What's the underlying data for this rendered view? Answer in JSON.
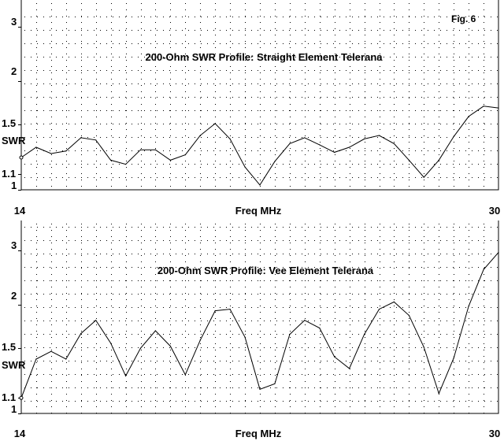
{
  "figure_label": "Fig. 6",
  "chart_data": [
    {
      "type": "line",
      "title": "200-Ohm SWR Profile:  Straight Element Telerana",
      "xlabel": "Freq MHz",
      "ylabel": "SWR",
      "x_tick_labels": [
        "14",
        "30"
      ],
      "y_tick_labels": [
        "1",
        "1.1",
        "1.5",
        "2",
        "3"
      ],
      "xlim": [
        14,
        30
      ],
      "ylim": [
        1,
        3.5
      ],
      "yscale": "vswr",
      "grid": true,
      "x": [
        14.0,
        14.5,
        15.0,
        15.5,
        16.0,
        16.5,
        17.0,
        17.5,
        18.0,
        18.5,
        19.0,
        19.5,
        20.0,
        20.5,
        21.0,
        21.5,
        22.0,
        22.5,
        23.0,
        23.5,
        24.0,
        24.5,
        25.0,
        25.5,
        26.0,
        26.5,
        27.0,
        27.5,
        28.0,
        28.5,
        29.0,
        29.5,
        30.0
      ],
      "values": [
        1.22,
        1.3,
        1.25,
        1.27,
        1.38,
        1.36,
        1.2,
        1.17,
        1.28,
        1.28,
        1.2,
        1.24,
        1.4,
        1.51,
        1.37,
        1.15,
        1.03,
        1.19,
        1.33,
        1.38,
        1.32,
        1.26,
        1.3,
        1.37,
        1.4,
        1.33,
        1.2,
        1.08,
        1.2,
        1.39,
        1.58,
        1.69,
        1.67
      ]
    },
    {
      "type": "line",
      "title": "200-Ohm SWR Profile:  Vee Element Telerana",
      "xlabel": "Freq MHz",
      "ylabel": "SWR",
      "x_tick_labels": [
        "14",
        "30"
      ],
      "y_tick_labels": [
        "1",
        "1.1",
        "1.5",
        "2",
        "3"
      ],
      "xlim": [
        14,
        30
      ],
      "ylim": [
        1,
        3.5
      ],
      "yscale": "vswr",
      "grid": true,
      "x": [
        14.0,
        14.5,
        15.0,
        15.5,
        16.0,
        16.5,
        17.0,
        17.5,
        18.0,
        18.5,
        19.0,
        19.5,
        20.0,
        20.5,
        21.0,
        21.5,
        22.0,
        22.5,
        23.0,
        23.5,
        24.0,
        24.5,
        25.0,
        25.5,
        26.0,
        26.5,
        27.0,
        27.5,
        28.0,
        28.5,
        29.0,
        29.5,
        30.0
      ],
      "values": [
        1.1,
        1.4,
        1.47,
        1.4,
        1.65,
        1.8,
        1.55,
        1.26,
        1.5,
        1.68,
        1.52,
        1.27,
        1.58,
        1.92,
        1.94,
        1.61,
        1.16,
        1.2,
        1.64,
        1.8,
        1.71,
        1.42,
        1.32,
        1.64,
        1.94,
        2.04,
        1.86,
        1.51,
        1.13,
        1.41,
        1.98,
        2.58,
        2.95
      ]
    }
  ]
}
